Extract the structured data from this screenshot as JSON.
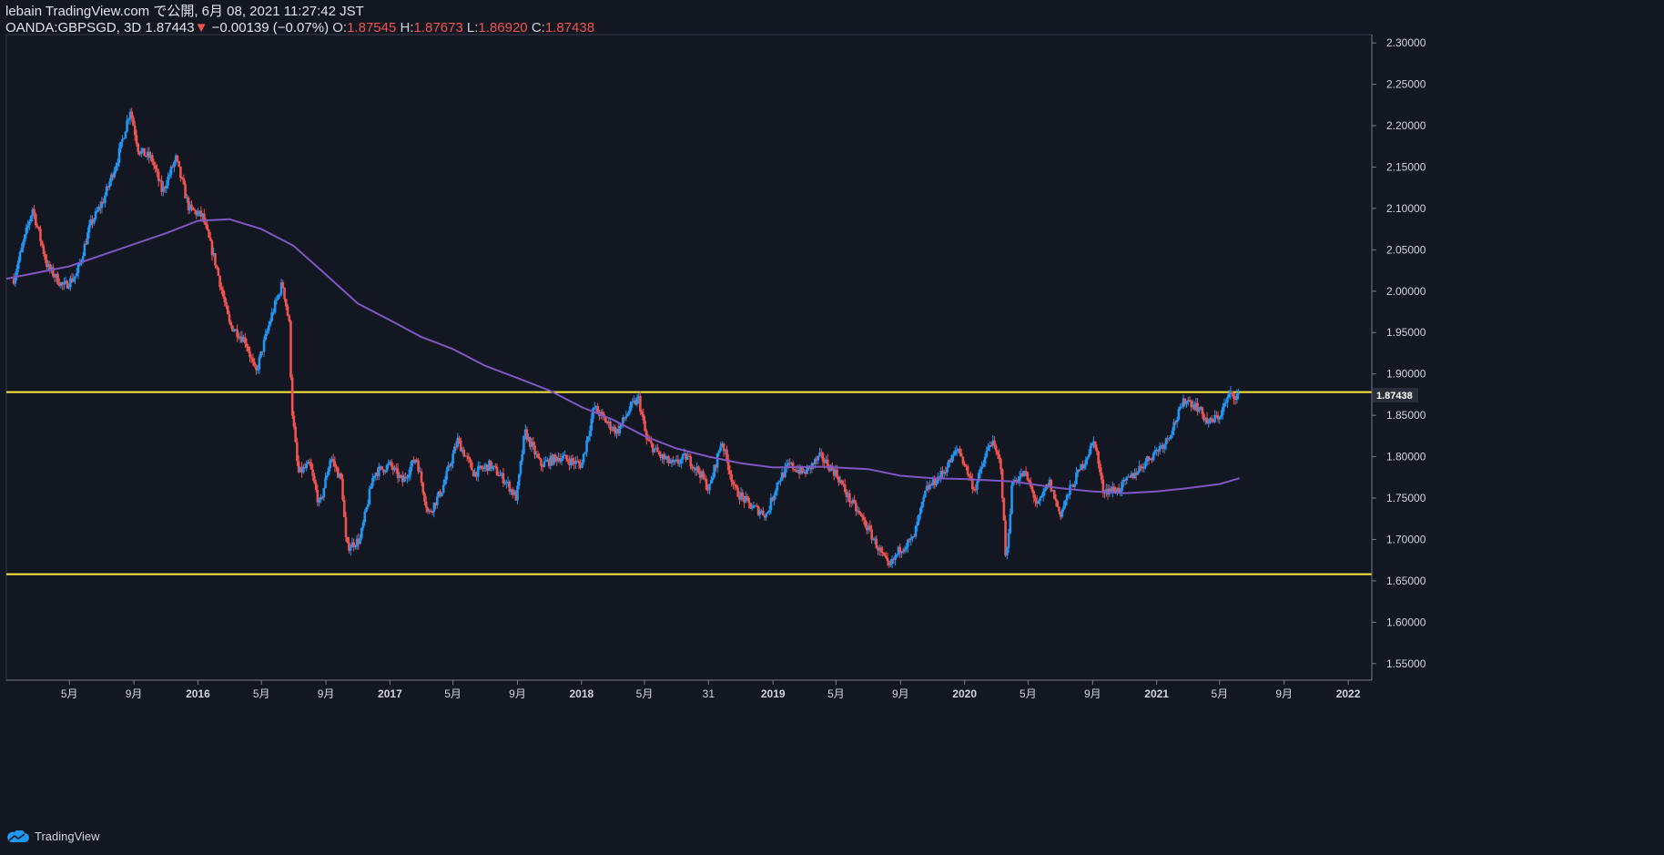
{
  "header": {
    "publisher_line": "lebain TradingView.com で公開, 6月 08, 2021 11:27:42 JST",
    "symbol": "OANDA:GBPSGD, 3D",
    "last": "1.87443",
    "change_arrow": "▼",
    "change": "−0.00139 (−0.07%)",
    "o_label": "O:",
    "o": "1.87545",
    "h_label": "H:",
    "h": "1.87673",
    "l_label": "L:",
    "l": "1.86920",
    "c_label": "C:",
    "c": "1.87438"
  },
  "footer": {
    "brand": "TradingView",
    "logo_icon": "tradingview-cloud-icon"
  },
  "colors": {
    "background": "#131722",
    "up": "#2196f3",
    "down": "#ef5350",
    "ma": "#7e57c2",
    "level": "#ffeb3b"
  },
  "chart_data": {
    "type": "candlestick",
    "ylim": [
      1.53,
      2.31
    ],
    "y_ticks": [
      "2.30000",
      "2.25000",
      "2.20000",
      "2.15000",
      "2.10000",
      "2.05000",
      "2.00000",
      "1.95000",
      "1.90000",
      "1.85000",
      "1.80000",
      "1.75000",
      "1.70000",
      "1.65000",
      "1.60000",
      "1.55000"
    ],
    "x_ticks": [
      "5月",
      "9月",
      "2016",
      "5月",
      "9月",
      "2017",
      "5月",
      "9月",
      "2018",
      "5月",
      "31",
      "2019",
      "5月",
      "9月",
      "2020",
      "5月",
      "9月",
      "2021",
      "5月",
      "9月",
      "2022"
    ],
    "price_label": "1.87438",
    "horizontal_levels": [
      1.878,
      1.658
    ],
    "close_path": [
      [
        "2015-01-15",
        2.015
      ],
      [
        "2015-02-20",
        2.1
      ],
      [
        "2015-03-20",
        2.03
      ],
      [
        "2015-04-20",
        2.005
      ],
      [
        "2015-05-15",
        2.02
      ],
      [
        "2015-06-10",
        2.08
      ],
      [
        "2015-07-05",
        2.11
      ],
      [
        "2015-08-01",
        2.16
      ],
      [
        "2015-08-25",
        2.22
      ],
      [
        "2015-09-10",
        2.17
      ],
      [
        "2015-10-05",
        2.16
      ],
      [
        "2015-10-25",
        2.12
      ],
      [
        "2015-11-20",
        2.16
      ],
      [
        "2015-12-15",
        2.1
      ],
      [
        "2016-01-10",
        2.09
      ],
      [
        "2016-02-05",
        2.03
      ],
      [
        "2016-03-01",
        1.96
      ],
      [
        "2016-04-01",
        1.94
      ],
      [
        "2016-04-20",
        1.9
      ],
      [
        "2016-05-20",
        1.97
      ],
      [
        "2016-06-10",
        2.01
      ],
      [
        "2016-06-23",
        1.96
      ],
      [
        "2016-06-28",
        1.86
      ],
      [
        "2016-07-10",
        1.78
      ],
      [
        "2016-08-01",
        1.79
      ],
      [
        "2016-08-20",
        1.74
      ],
      [
        "2016-09-10",
        1.8
      ],
      [
        "2016-10-01",
        1.77
      ],
      [
        "2016-10-10",
        1.69
      ],
      [
        "2016-11-05",
        1.7
      ],
      [
        "2016-12-01",
        1.78
      ],
      [
        "2017-01-01",
        1.79
      ],
      [
        "2017-01-25",
        1.77
      ],
      [
        "2017-02-20",
        1.8
      ],
      [
        "2017-03-15",
        1.73
      ],
      [
        "2017-04-10",
        1.76
      ],
      [
        "2017-05-10",
        1.82
      ],
      [
        "2017-06-10",
        1.78
      ],
      [
        "2017-07-10",
        1.79
      ],
      [
        "2017-08-10",
        1.77
      ],
      [
        "2017-08-30",
        1.75
      ],
      [
        "2017-09-15",
        1.83
      ],
      [
        "2017-10-15",
        1.79
      ],
      [
        "2017-11-20",
        1.8
      ],
      [
        "2018-01-01",
        1.79
      ],
      [
        "2018-01-25",
        1.86
      ],
      [
        "2018-02-20",
        1.84
      ],
      [
        "2018-03-10",
        1.83
      ],
      [
        "2018-04-05",
        1.86
      ],
      [
        "2018-04-20",
        1.87
      ],
      [
        "2018-05-05",
        1.82
      ],
      [
        "2018-06-01",
        1.8
      ],
      [
        "2018-06-25",
        1.79
      ],
      [
        "2018-07-20",
        1.8
      ],
      [
        "2018-08-15",
        1.78
      ],
      [
        "2018-09-01",
        1.76
      ],
      [
        "2018-09-25",
        1.82
      ],
      [
        "2018-10-20",
        1.76
      ],
      [
        "2018-11-20",
        1.74
      ],
      [
        "2018-12-20",
        1.73
      ],
      [
        "2019-01-10",
        1.77
      ],
      [
        "2019-02-01",
        1.79
      ],
      [
        "2019-03-01",
        1.78
      ],
      [
        "2019-04-01",
        1.8
      ],
      [
        "2019-05-01",
        1.78
      ],
      [
        "2019-05-25",
        1.75
      ],
      [
        "2019-06-25",
        1.72
      ],
      [
        "2019-07-20",
        1.69
      ],
      [
        "2019-08-10",
        1.665
      ],
      [
        "2019-09-01",
        1.69
      ],
      [
        "2019-09-25",
        1.7
      ],
      [
        "2019-10-20",
        1.76
      ],
      [
        "2019-11-20",
        1.78
      ],
      [
        "2019-12-20",
        1.81
      ],
      [
        "2020-01-20",
        1.76
      ],
      [
        "2020-02-20",
        1.82
      ],
      [
        "2020-03-10",
        1.79
      ],
      [
        "2020-03-20",
        1.67
      ],
      [
        "2020-04-01",
        1.77
      ],
      [
        "2020-04-25",
        1.78
      ],
      [
        "2020-05-20",
        1.74
      ],
      [
        "2020-06-10",
        1.77
      ],
      [
        "2020-07-01",
        1.73
      ],
      [
        "2020-07-20",
        1.76
      ],
      [
        "2020-08-20",
        1.8
      ],
      [
        "2020-09-05",
        1.82
      ],
      [
        "2020-09-20",
        1.76
      ],
      [
        "2020-10-20",
        1.76
      ],
      [
        "2020-11-20",
        1.78
      ],
      [
        "2020-12-20",
        1.8
      ],
      [
        "2021-01-20",
        1.82
      ],
      [
        "2021-02-25",
        1.87
      ],
      [
        "2021-03-20",
        1.86
      ],
      [
        "2021-04-10",
        1.84
      ],
      [
        "2021-05-01",
        1.85
      ],
      [
        "2021-05-20",
        1.875
      ],
      [
        "2021-06-08",
        1.874
      ]
    ],
    "ma_path": [
      [
        "2015-01-01",
        2.015
      ],
      [
        "2015-05-01",
        2.03
      ],
      [
        "2015-08-01",
        2.05
      ],
      [
        "2015-11-01",
        2.07
      ],
      [
        "2016-01-01",
        2.085
      ],
      [
        "2016-03-01",
        2.087
      ],
      [
        "2016-05-01",
        2.075
      ],
      [
        "2016-07-01",
        2.055
      ],
      [
        "2016-09-01",
        2.02
      ],
      [
        "2016-11-01",
        1.985
      ],
      [
        "2017-01-01",
        1.965
      ],
      [
        "2017-03-01",
        1.945
      ],
      [
        "2017-05-01",
        1.93
      ],
      [
        "2017-07-01",
        1.91
      ],
      [
        "2017-09-01",
        1.895
      ],
      [
        "2017-11-01",
        1.88
      ],
      [
        "2018-01-01",
        1.86
      ],
      [
        "2018-03-01",
        1.845
      ],
      [
        "2018-05-01",
        1.825
      ],
      [
        "2018-07-01",
        1.81
      ],
      [
        "2018-09-01",
        1.8
      ],
      [
        "2018-11-01",
        1.792
      ],
      [
        "2019-01-01",
        1.787
      ],
      [
        "2019-04-01",
        1.788
      ],
      [
        "2019-07-01",
        1.785
      ],
      [
        "2019-09-01",
        1.777
      ],
      [
        "2019-11-01",
        1.774
      ],
      [
        "2020-01-01",
        1.773
      ],
      [
        "2020-04-01",
        1.77
      ],
      [
        "2020-07-01",
        1.762
      ],
      [
        "2020-09-01",
        1.758
      ],
      [
        "2020-11-01",
        1.756
      ],
      [
        "2021-01-01",
        1.758
      ],
      [
        "2021-03-01",
        1.762
      ],
      [
        "2021-05-01",
        1.767
      ],
      [
        "2021-06-08",
        1.774
      ]
    ]
  }
}
